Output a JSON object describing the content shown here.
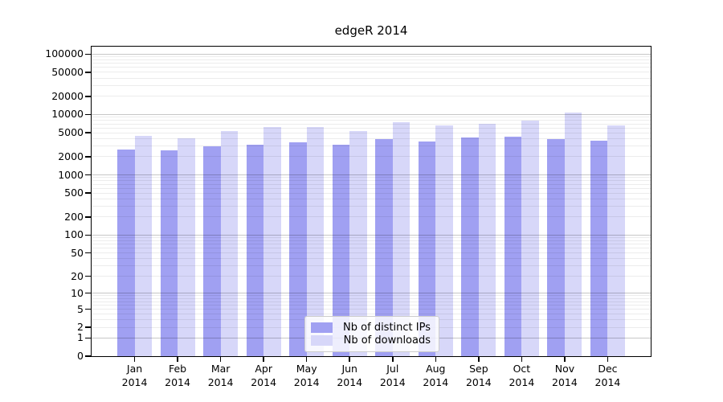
{
  "chart_data": {
    "type": "bar",
    "title": "edgeR 2014",
    "categories": [
      "Jan 2014",
      "Feb 2014",
      "Mar 2014",
      "Apr 2014",
      "May 2014",
      "Jun 2014",
      "Jul 2014",
      "Aug 2014",
      "Sep 2014",
      "Oct 2014",
      "Nov 2014",
      "Dec 2014"
    ],
    "series": [
      {
        "name": "Nb of distinct IPs",
        "color": "#a0a0f2",
        "values": [
          2670,
          2590,
          3020,
          3210,
          3450,
          3180,
          3930,
          3630,
          4230,
          4320,
          3940,
          3740
        ]
      },
      {
        "name": "Nb of downloads",
        "color": "#d7d7f9",
        "values": [
          4450,
          4100,
          5350,
          6170,
          6230,
          5350,
          7430,
          6570,
          6980,
          7960,
          10840,
          6620
        ]
      }
    ],
    "xlabel": "",
    "ylabel": "",
    "y_ticks": [
      0,
      1,
      2,
      5,
      10,
      20,
      50,
      100,
      200,
      500,
      1000,
      2000,
      5000,
      10000,
      20000,
      50000,
      100000
    ],
    "y_scale": "log1p",
    "ylim": [
      0,
      133000
    ],
    "grid": "on",
    "legend_position": "lower-center-inside"
  },
  "colors": {
    "axis": "#000000",
    "grid_major": "#c8c8c8",
    "grid_minor": "#ebebeb",
    "background": "#ffffff"
  }
}
